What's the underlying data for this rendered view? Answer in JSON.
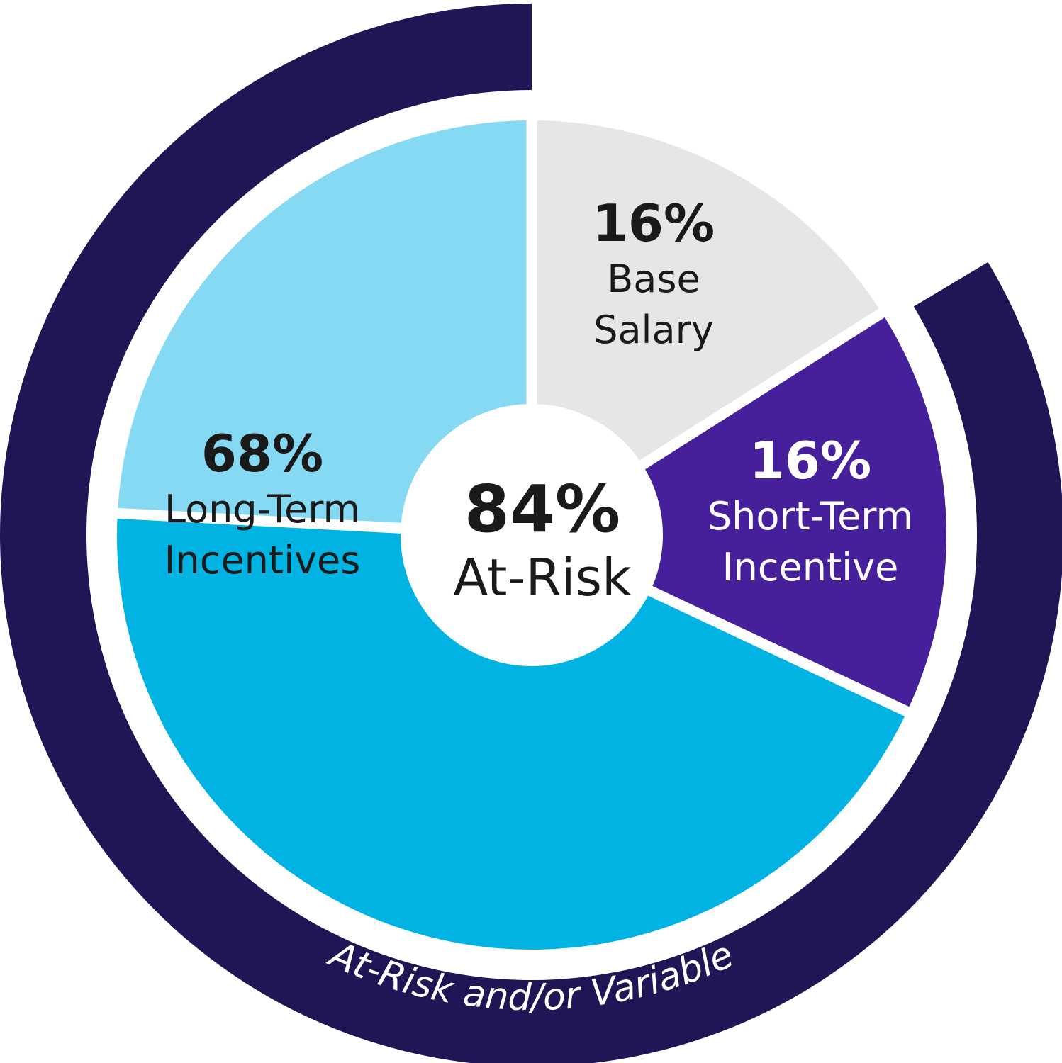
{
  "chart_data": {
    "type": "pie",
    "slices": [
      {
        "label_lines": [
          "Base",
          "Salary"
        ],
        "value": 16,
        "value_label": "16%",
        "color": "#e6e6e6",
        "text_color": "#1a1a1a"
      },
      {
        "label_lines": [
          "Short-Term",
          "Incentive"
        ],
        "value": 16,
        "value_label": "16%",
        "color": "#45209a",
        "text_color": "#ffffff"
      },
      {
        "label_lines": [
          "Long-Term",
          "Incentives"
        ],
        "value": 68,
        "value_label": "68%",
        "color": "#00b3e3",
        "color_light": "#85d9f2",
        "text_color": "#1a1a1a"
      }
    ],
    "center": {
      "value_label": "84%",
      "label": "At-Risk"
    },
    "outer_arc": {
      "label": "At-Risk and/or Variable",
      "color": "#201555"
    }
  }
}
